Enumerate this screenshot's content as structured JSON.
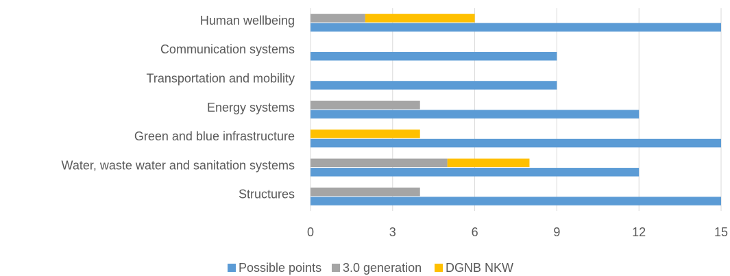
{
  "chart_data": {
    "type": "bar",
    "orientation": "horizontal",
    "categories": [
      "Human wellbeing",
      "Communication systems",
      "Transportation and mobility",
      "Energy systems",
      "Green and blue infrastructure",
      "Water, waste water and sanitation systems",
      "Structures"
    ],
    "series": [
      {
        "name": "Possible points",
        "color": "#5b9bd5",
        "values": [
          15,
          9,
          9,
          12,
          15,
          12,
          15
        ]
      },
      {
        "name": "3.0 generation",
        "color": "#a5a5a5",
        "values": [
          2,
          0,
          0,
          4,
          0,
          5,
          4
        ]
      },
      {
        "name": "DGNB NKW",
        "color": "#ffc000",
        "values": [
          4,
          0,
          0,
          0,
          4,
          3,
          0
        ]
      }
    ],
    "xlim": [
      0,
      15
    ],
    "xticks": [
      0,
      3,
      6,
      9,
      12,
      15
    ],
    "grid": true,
    "legend": "bottom"
  }
}
